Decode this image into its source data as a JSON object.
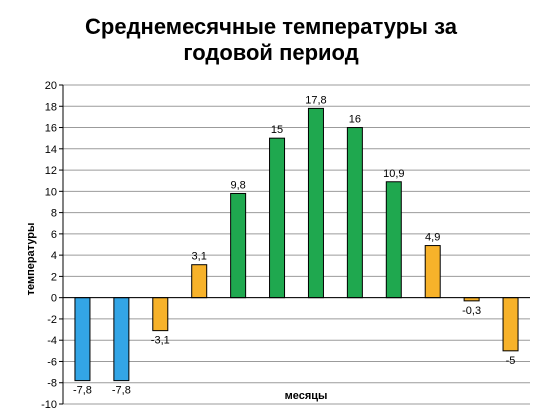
{
  "chart_data": {
    "type": "bar",
    "title_line1": "Среднемесячные температуры за",
    "title_line2": "годовой период",
    "xlabel": "месяцы",
    "ylabel": "температуры",
    "ylim": [
      -10,
      20
    ],
    "ytick_step": 2,
    "grid": true,
    "legend": "none",
    "values": [
      -7.8,
      -7.8,
      -3.1,
      3.1,
      9.8,
      15,
      17.8,
      16,
      10.9,
      4.9,
      -0.3,
      -5
    ],
    "labels": [
      "-7,8",
      "-7,8",
      "-3,1",
      "3,1",
      "9,8",
      "15",
      "17,8",
      "16",
      "10,9",
      "4,9",
      "-0,3",
      "-5"
    ],
    "colors": [
      "#33A5E6",
      "#33A5E6",
      "#F7B22A",
      "#F7B22A",
      "#1FA84F",
      "#1FA84F",
      "#1FA84F",
      "#1FA84F",
      "#1FA84F",
      "#F7B22A",
      "#F7B22A",
      "#F7B22A"
    ],
    "gridline_color": "#9B9B9B"
  }
}
